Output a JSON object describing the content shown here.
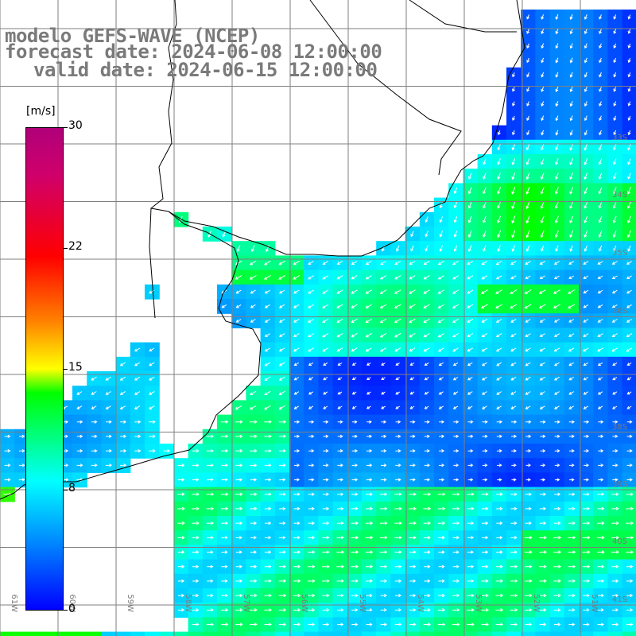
{
  "title": {
    "line1": "modelo GEFS-WAVE (NCEP)",
    "line2": "forecast date: 2024-06-08 12:00:00",
    "line3": "valid date: 2024-06-15 12:00:00"
  },
  "legend": {
    "unit": "[m/s]",
    "ticks": [
      "30",
      "22",
      "15",
      "8",
      "0"
    ]
  },
  "lat_labels": [
    "33S",
    "34S",
    "35S",
    "36S",
    "38S",
    "39S",
    "40S",
    "41S"
  ],
  "lon_labels": [
    "61W",
    "60W",
    "59W",
    "58W",
    "57W",
    "56W",
    "55W",
    "54W",
    "53W",
    "52W",
    "51W"
  ],
  "colors": {
    "land": "#ffffff",
    "coast": "#000000",
    "grid": "#7f7f7f",
    "arrow": "#ffffff",
    "label": "#7a7a7a"
  }
}
